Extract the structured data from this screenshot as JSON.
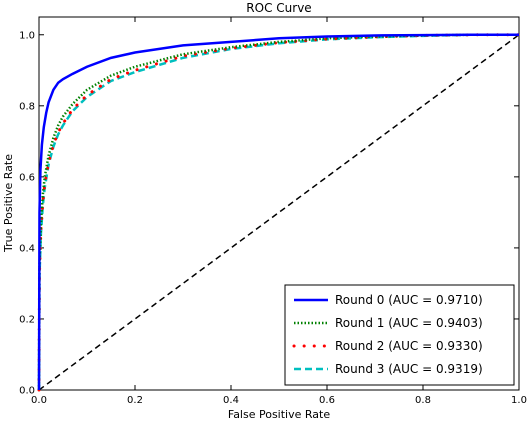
{
  "chart_data": {
    "type": "line",
    "title": "ROC Curve",
    "xlabel": "False Positive Rate",
    "ylabel": "True Positive Rate",
    "xlim": [
      0.0,
      1.0
    ],
    "ylim": [
      0.0,
      1.05
    ],
    "x_ticks": [
      "0.0",
      "0.2",
      "0.4",
      "0.6",
      "0.8",
      "1.0"
    ],
    "y_ticks": [
      "0.0",
      "0.2",
      "0.4",
      "0.6",
      "0.8",
      "1.0"
    ],
    "grid": false,
    "legend_position": "bottom-right",
    "series": [
      {
        "name": "Round 0 (AUC = 0.9710)",
        "color": "#0000ff",
        "style": "solid",
        "x": [
          0,
          0.001,
          0.003,
          0.006,
          0.01,
          0.015,
          0.02,
          0.03,
          0.04,
          0.05,
          0.07,
          0.1,
          0.15,
          0.2,
          0.3,
          0.4,
          0.5,
          0.6,
          0.7,
          0.8,
          0.9,
          1.0
        ],
        "y": [
          0,
          0.5,
          0.62,
          0.69,
          0.74,
          0.78,
          0.81,
          0.845,
          0.865,
          0.875,
          0.89,
          0.91,
          0.935,
          0.95,
          0.97,
          0.98,
          0.99,
          0.995,
          0.998,
          0.999,
          1.0,
          1.0
        ]
      },
      {
        "name": "Round 1 (AUC = 0.9403)",
        "color": "#008000",
        "style": "dotted",
        "x": [
          0,
          0.001,
          0.004,
          0.008,
          0.012,
          0.02,
          0.03,
          0.04,
          0.05,
          0.07,
          0.1,
          0.15,
          0.2,
          0.3,
          0.4,
          0.5,
          0.6,
          0.7,
          0.8,
          0.9,
          1.0
        ],
        "y": [
          0,
          0.35,
          0.47,
          0.55,
          0.6,
          0.66,
          0.71,
          0.745,
          0.77,
          0.805,
          0.845,
          0.885,
          0.91,
          0.945,
          0.965,
          0.98,
          0.99,
          0.995,
          0.998,
          1.0,
          1.0
        ]
      },
      {
        "name": "Round 2 (AUC = 0.9330)",
        "color": "#ff0000",
        "style": "dots",
        "x": [
          0,
          0.001,
          0.004,
          0.008,
          0.012,
          0.02,
          0.03,
          0.04,
          0.05,
          0.07,
          0.1,
          0.15,
          0.2,
          0.3,
          0.4,
          0.5,
          0.6,
          0.7,
          0.8,
          0.9,
          1.0
        ],
        "y": [
          0,
          0.33,
          0.45,
          0.53,
          0.58,
          0.64,
          0.69,
          0.725,
          0.75,
          0.79,
          0.83,
          0.875,
          0.9,
          0.94,
          0.962,
          0.978,
          0.988,
          0.994,
          0.998,
          1.0,
          1.0
        ]
      },
      {
        "name": "Round 3 (AUC = 0.9319)",
        "color": "#00bfbf",
        "style": "dashed",
        "x": [
          0,
          0.001,
          0.004,
          0.008,
          0.012,
          0.02,
          0.03,
          0.04,
          0.05,
          0.07,
          0.1,
          0.15,
          0.2,
          0.3,
          0.4,
          0.5,
          0.6,
          0.7,
          0.8,
          0.9,
          1.0
        ],
        "y": [
          0,
          0.32,
          0.44,
          0.52,
          0.57,
          0.635,
          0.685,
          0.72,
          0.745,
          0.785,
          0.825,
          0.87,
          0.895,
          0.935,
          0.96,
          0.976,
          0.987,
          0.993,
          0.997,
          1.0,
          1.0
        ]
      },
      {
        "name": "",
        "color": "#000000",
        "style": "diagonal",
        "x": [
          0,
          1
        ],
        "y": [
          0,
          1
        ]
      }
    ]
  }
}
